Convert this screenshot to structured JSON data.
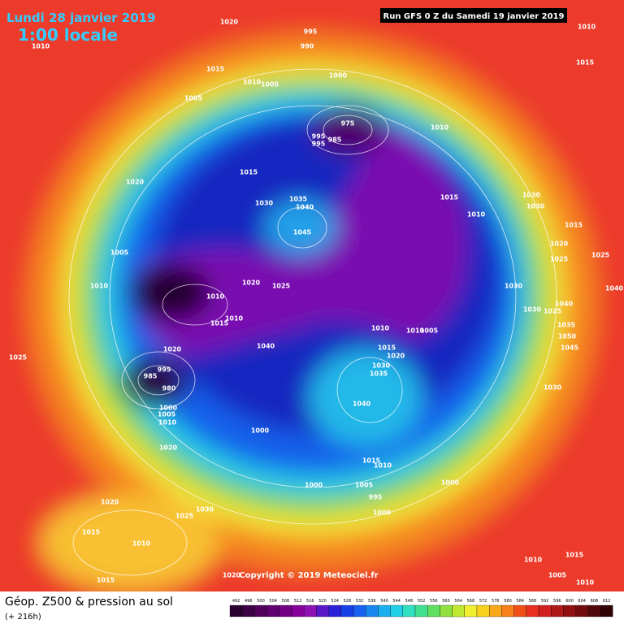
{
  "header": {
    "valid_date": "Lundi 28 janvier 2019",
    "local_time": "1:00 locale",
    "run": "Run GFS 0 Z du Samedi 19 janvier 2019"
  },
  "footer": {
    "field": "Géop. Z500 & pression au sol",
    "lead": "(+ 216h)",
    "copyright": "Copyright © 2019 Meteociel.fr"
  },
  "color_scale": {
    "values": [
      492,
      496,
      500,
      504,
      508,
      512,
      516,
      520,
      524,
      528,
      532,
      536,
      540,
      544,
      548,
      552,
      556,
      560,
      564,
      568,
      572,
      576,
      580,
      584,
      588,
      592,
      596,
      600,
      604,
      608,
      612
    ],
    "colors": [
      "#2a0030",
      "#3c0045",
      "#50005a",
      "#600070",
      "#730085",
      "#86009a",
      "#8f10b5",
      "#5a18c8",
      "#2a20d8",
      "#1840e8",
      "#1860f0",
      "#1888f0",
      "#18b0f0",
      "#20d0e8",
      "#30e0c0",
      "#40e090",
      "#60e060",
      "#90e040",
      "#c0e830",
      "#f0f030",
      "#f8d020",
      "#f8a818",
      "#f88018",
      "#f05018",
      "#e83020",
      "#d02020",
      "#b01818",
      "#901010",
      "#700c0c",
      "#500808",
      "#300404"
    ]
  },
  "isobar_labels": [
    1020,
    995,
    990,
    1010,
    1015,
    1010,
    1005,
    1000,
    1005,
    975,
    995,
    995,
    985,
    1010,
    1015,
    1020,
    1030,
    1035,
    1040,
    1015,
    1010,
    1030,
    1030,
    1045,
    1015,
    1020,
    1025,
    1025,
    1005,
    1010,
    1020,
    1025,
    1030,
    1040,
    1010,
    1010,
    1015,
    1030,
    1025,
    1040,
    1010,
    1010,
    1005,
    1020,
    1040,
    1015,
    1020,
    1035,
    1050,
    1045,
    1025,
    995,
    985,
    980,
    1030,
    1035,
    1040,
    1030,
    1000,
    1005,
    1010,
    1000,
    1020,
    1015,
    1010,
    1000,
    1005,
    1000,
    995,
    1000,
    1020,
    1030,
    1025,
    1015,
    1010,
    1010,
    1015,
    1005,
    1010,
    1015,
    1020,
    1010,
    1015
  ]
}
